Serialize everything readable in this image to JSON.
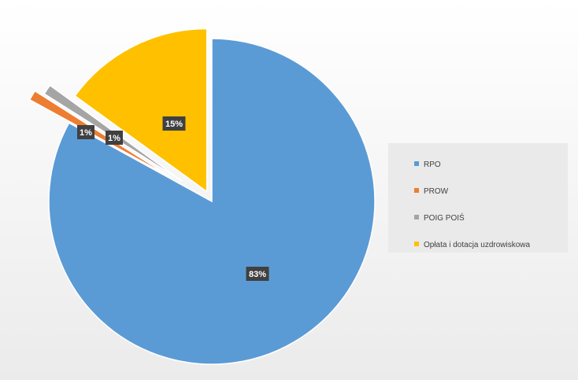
{
  "chart_data": {
    "type": "pie",
    "title": "",
    "legend_position": "right",
    "slices": [
      {
        "label": "RPO",
        "value": 83,
        "display": "83%",
        "color": "#5b9bd5"
      },
      {
        "label": "PROW",
        "value": 1,
        "display": "1%",
        "color": "#ed7d31"
      },
      {
        "label": "POIG POIŚ",
        "value": 1,
        "display": "1%",
        "color": "#a5a5a5"
      },
      {
        "label": "Opłata i dotacja uzdrowiskowa",
        "value": 15,
        "display": "15%",
        "color": "#ffc000"
      }
    ]
  }
}
